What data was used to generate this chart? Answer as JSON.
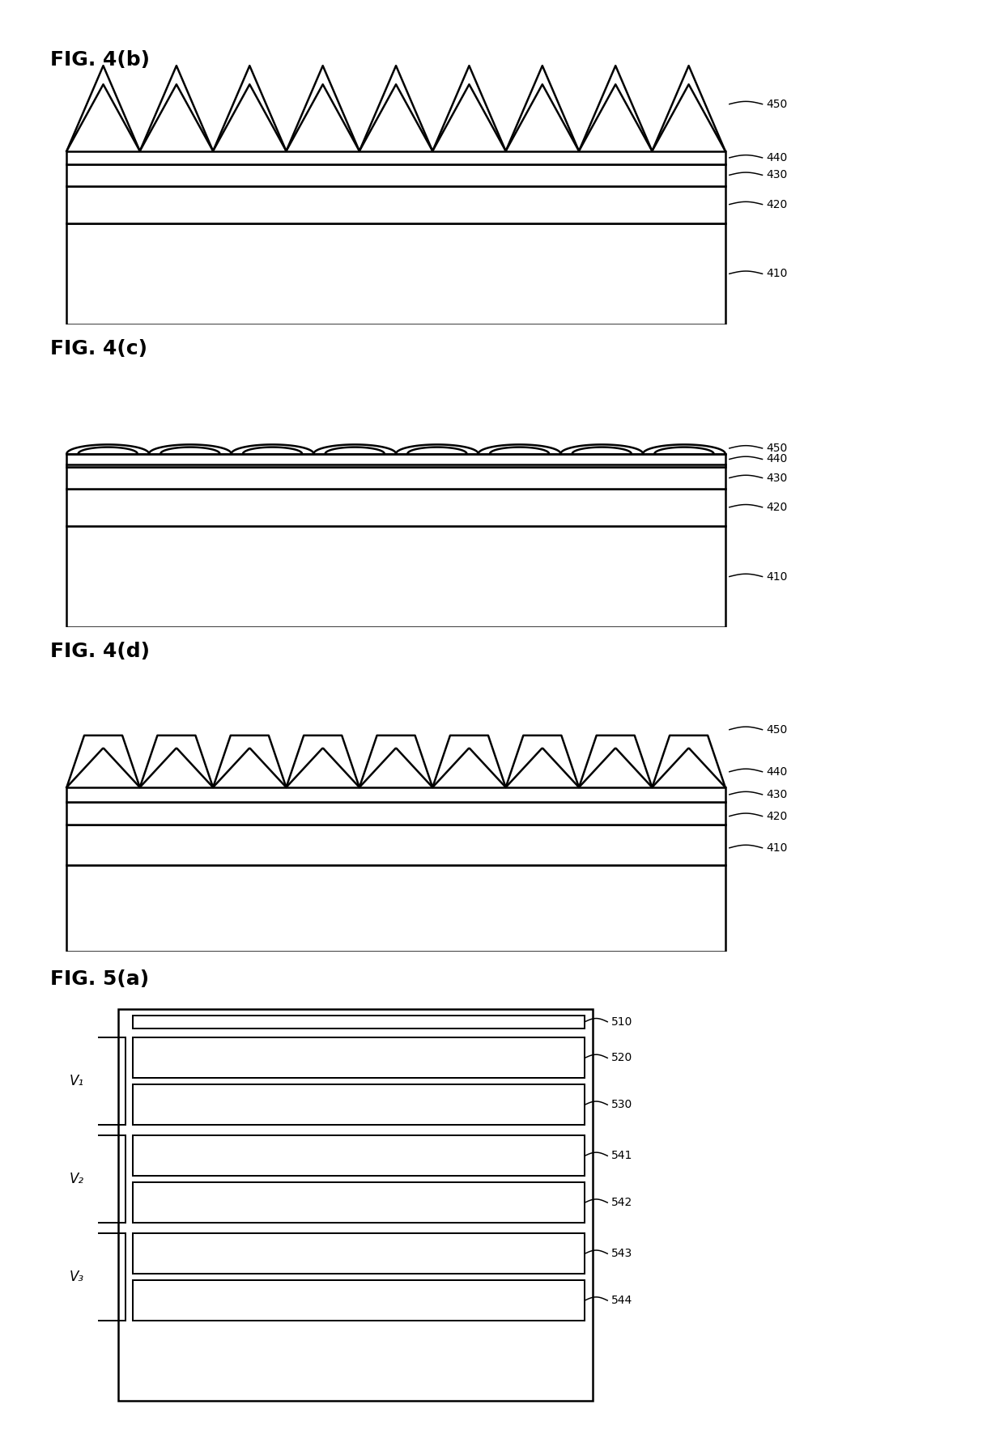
{
  "fig4b_title": "FIG. 4(b)",
  "fig4c_title": "FIG. 4(c)",
  "fig4d_title": "FIG. 4(d)",
  "fig5a_title": "FIG. 5(a)",
  "labels_4b": [
    "450",
    "440",
    "430",
    "420",
    "410"
  ],
  "labels_4c": [
    "450",
    "440",
    "430",
    "420",
    "410"
  ],
  "labels_4d": [
    "450",
    "440",
    "430",
    "420",
    "410"
  ],
  "labels_5a": [
    "510",
    "520",
    "530",
    "541",
    "542",
    "543",
    "544"
  ],
  "v_labels": [
    "V₁",
    "V₂",
    "V₃"
  ],
  "bg_color": "#ffffff",
  "line_color": "#000000",
  "lw": 1.8
}
